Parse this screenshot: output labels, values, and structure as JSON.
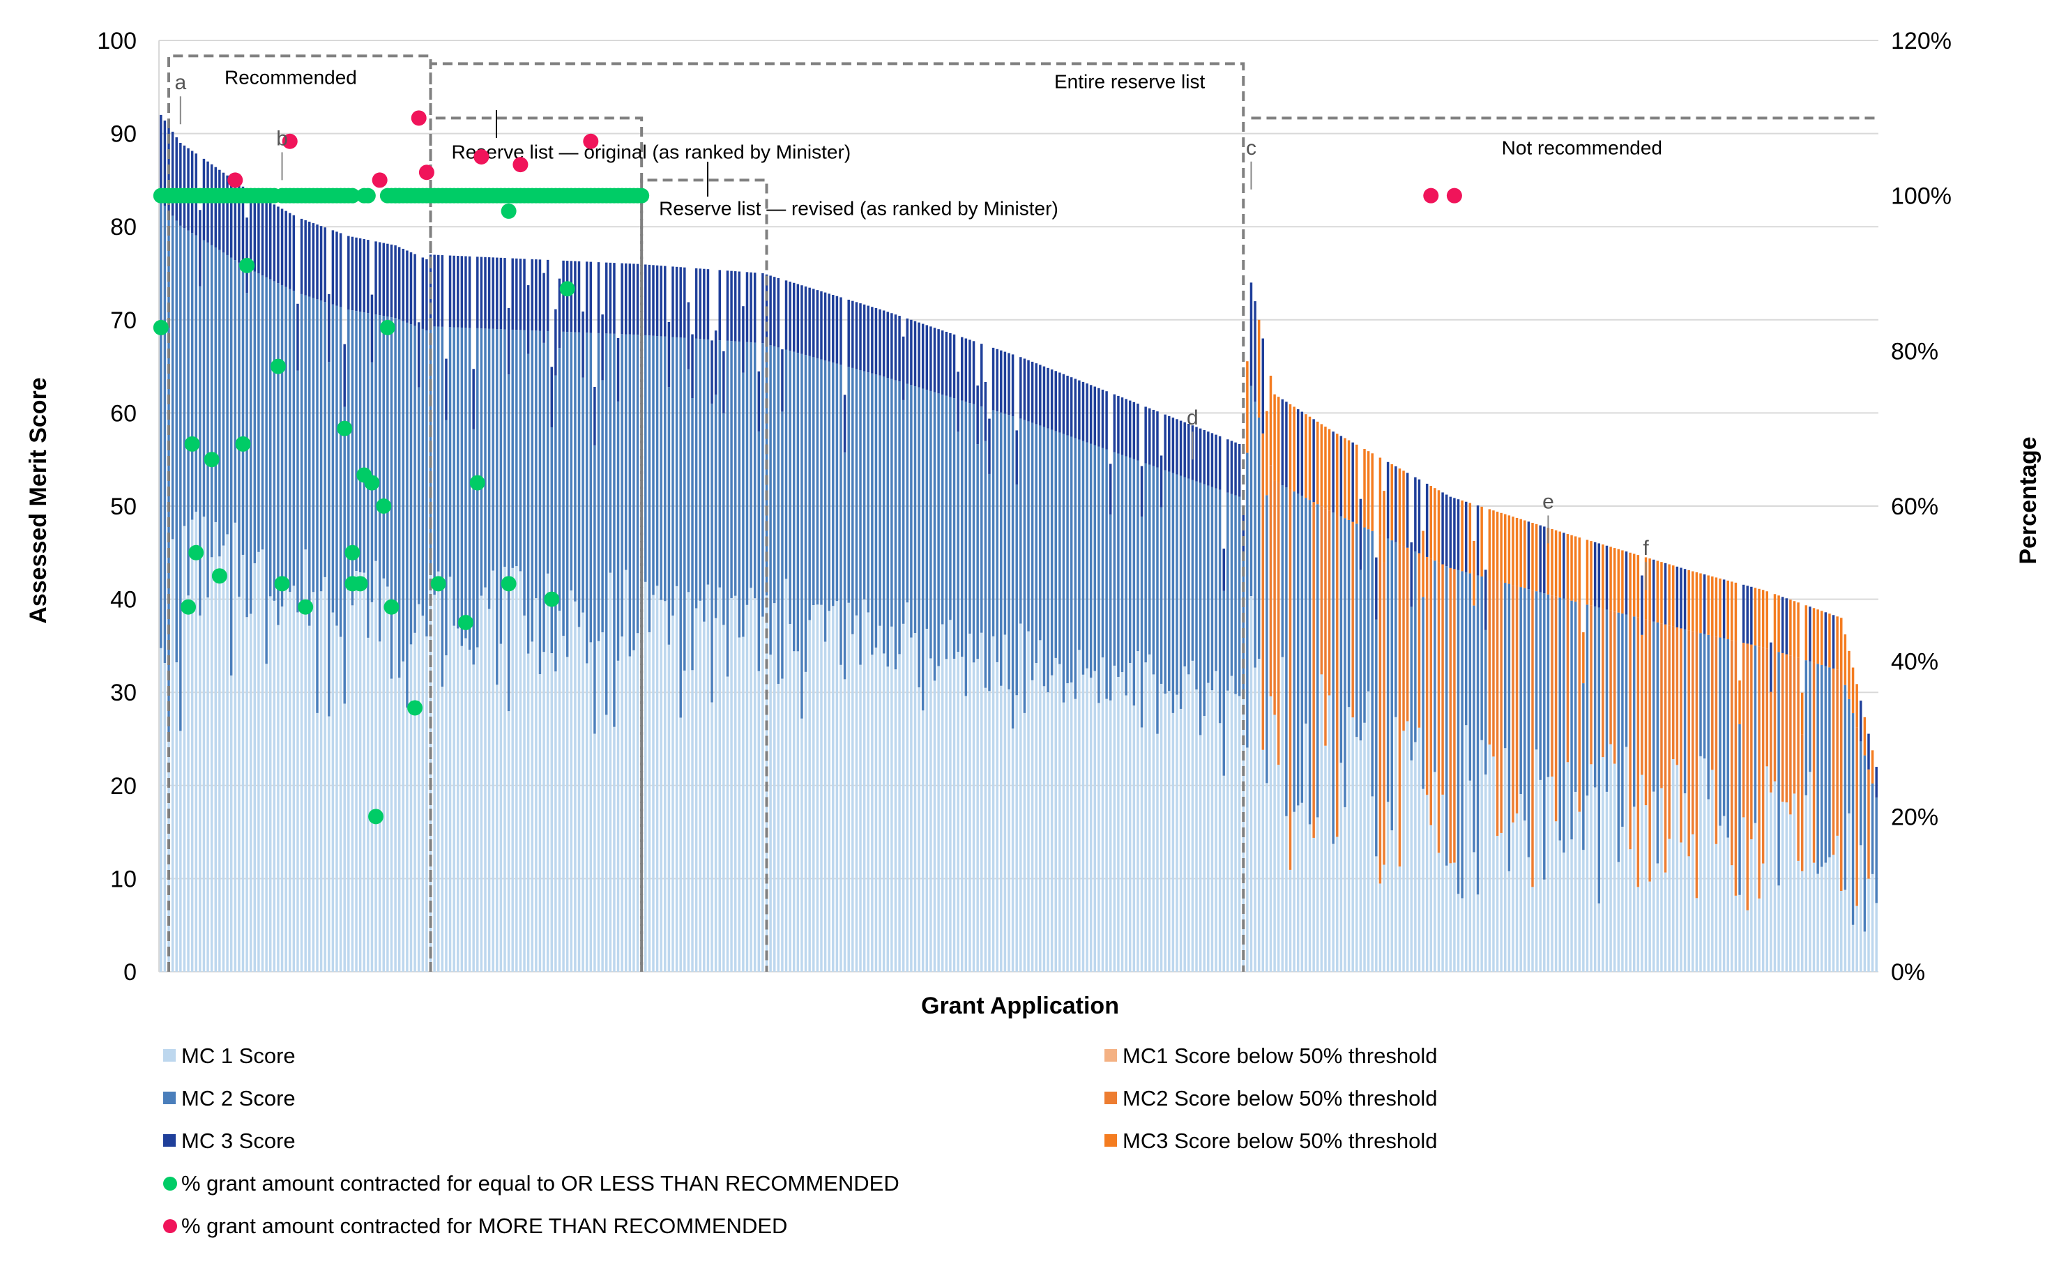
{
  "chart_data": {
    "type": "bar",
    "stacked": true,
    "xlabel": "Grant Application",
    "ylabel": "Assessed Merit Score",
    "y2label": "Percentage",
    "ylim": [
      0,
      100
    ],
    "y2lim": [
      0,
      120
    ],
    "yticks": [
      "0",
      "10",
      "20",
      "30",
      "40",
      "50",
      "60",
      "70",
      "80",
      "90",
      "100"
    ],
    "y2ticks": [
      "0%",
      "20%",
      "40%",
      "60%",
      "80%",
      "100%",
      "120%"
    ],
    "grid": true,
    "application_count": 440,
    "legend_placement": "bottom",
    "colors": {
      "mc1": "#bdd7ee",
      "mc2": "#4a7ebb",
      "mc3": "#1f3f9a",
      "mc1_below": "#f4b183",
      "mc2_below": "#ed7d31",
      "mc3_below": "#f47c20",
      "dot_equal_or_less": "#00cc66",
      "dot_more": "#f0145a",
      "grid": "#d9d9d9",
      "region_outline": "#808080"
    },
    "score_profile": {
      "top_score": [
        [
          0,
          92
        ],
        [
          5,
          89
        ],
        [
          12,
          87
        ],
        [
          22,
          84
        ],
        [
          35,
          81
        ],
        [
          48,
          79
        ],
        [
          60,
          78
        ],
        [
          68,
          76.5
        ],
        [
          69,
          77
        ],
        [
          122,
          76
        ],
        [
          154,
          75
        ],
        [
          185,
          71
        ],
        [
          220,
          66
        ],
        [
          250,
          61
        ],
        [
          280,
          56
        ],
        [
          278,
          55
        ],
        [
          305,
          51
        ],
        [
          277,
          50
        ],
        [
          278,
          76
        ],
        [
          285,
          62
        ],
        [
          300,
          58
        ],
        [
          330,
          51
        ],
        [
          360,
          47
        ],
        [
          392,
          43
        ],
        [
          410,
          41
        ],
        [
          430,
          38
        ],
        [
          439,
          22
        ]
      ],
      "mc1_share_above_threshold": 0.5,
      "below_threshold_from_application": 278
    },
    "legend": [
      {
        "key": "mc1",
        "label": "MC 1 Score",
        "marker": "square"
      },
      {
        "key": "mc2",
        "label": "MC 2 Score",
        "marker": "square"
      },
      {
        "key": "mc3",
        "label": "MC 3 Score",
        "marker": "square"
      },
      {
        "key": "equal",
        "label": "% grant amount contracted for equal to OR LESS THAN RECOMMENDED",
        "marker": "dot"
      },
      {
        "key": "more",
        "label": "% grant amount contracted for MORE THAN RECOMMENDED",
        "marker": "dot"
      },
      {
        "key": "mc1_below",
        "label": "MC1 Score below 50% threshold",
        "marker": "square"
      },
      {
        "key": "mc2_below",
        "label": "MC2 Score below 50% threshold",
        "marker": "square"
      },
      {
        "key": "mc3_below",
        "label": "MC3 Score below 50% threshold",
        "marker": "square"
      }
    ],
    "regions": [
      {
        "label": "Recommended",
        "from_application": 2,
        "to_application": 69,
        "level_pct": 118
      },
      {
        "label": "Reserve list — original (as ranked by Minister)",
        "from_application": 69,
        "to_application": 123,
        "level_pct": 110
      },
      {
        "label": "Reserve list — revised (as ranked by Minister)",
        "from_application": 123,
        "to_application": 155,
        "level_pct": 102
      },
      {
        "label": "Entire reserve list",
        "from_application": 69,
        "to_application": 277,
        "level_pct": 117
      },
      {
        "label": "Not recommended",
        "from_application": 279,
        "to_application": 439,
        "level_pct": 110
      }
    ],
    "annotations": [
      {
        "label": "a",
        "application": 5,
        "score": 91
      },
      {
        "label": "b",
        "application": 31,
        "score": 85
      },
      {
        "label": "c",
        "application": 279,
        "score": 84
      },
      {
        "label": "d",
        "application": 264,
        "score": 55
      },
      {
        "label": "e",
        "application": 355,
        "score": 46
      },
      {
        "label": "f",
        "application": 380,
        "score": 41
      }
    ],
    "dots_equal_or_less_than_recommended": {
      "pct_100_application_ranges": [
        [
          0,
          5
        ],
        [
          6,
          18
        ],
        [
          19,
          29
        ],
        [
          31,
          49
        ],
        [
          52,
          53
        ],
        [
          58,
          61
        ],
        [
          60,
          123
        ]
      ],
      "points": [
        [
          0,
          83
        ],
        [
          7,
          47
        ],
        [
          8,
          68
        ],
        [
          9,
          54
        ],
        [
          13,
          66
        ],
        [
          15,
          51
        ],
        [
          21,
          68
        ],
        [
          22,
          91
        ],
        [
          30,
          78
        ],
        [
          31,
          50
        ],
        [
          37,
          47
        ],
        [
          47,
          70
        ],
        [
          49,
          54
        ],
        [
          49,
          50
        ],
        [
          51,
          50
        ],
        [
          52,
          64
        ],
        [
          54,
          63
        ],
        [
          55,
          20
        ],
        [
          57,
          60
        ],
        [
          58,
          83
        ],
        [
          59,
          47
        ],
        [
          65,
          34
        ],
        [
          71,
          50
        ],
        [
          78,
          45
        ],
        [
          81,
          63
        ],
        [
          89,
          98
        ],
        [
          89,
          50
        ],
        [
          100,
          48
        ],
        [
          104,
          88
        ]
      ]
    },
    "dots_more_than_recommended": {
      "points": [
        [
          19,
          102
        ],
        [
          33,
          107
        ],
        [
          56,
          102
        ],
        [
          66,
          110
        ],
        [
          68,
          103
        ],
        [
          82,
          105
        ],
        [
          92,
          104
        ],
        [
          110,
          107
        ],
        [
          325,
          100
        ],
        [
          331,
          100
        ]
      ]
    }
  }
}
